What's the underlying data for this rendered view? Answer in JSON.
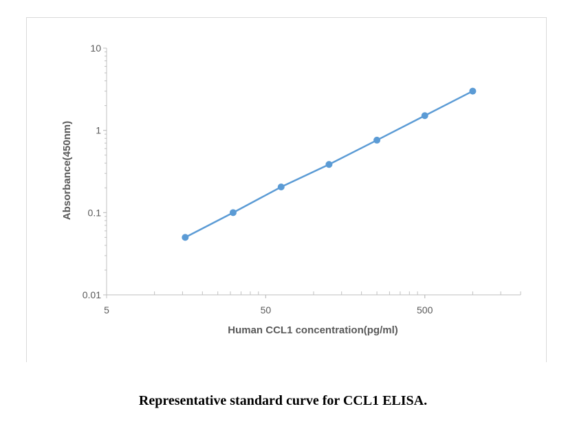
{
  "chart_data": {
    "type": "line",
    "xlabel": "Human CCL1 concentration(pg/ml)",
    "ylabel": "Absorbance(450nm)",
    "x_scale": "log",
    "y_scale": "log",
    "xlim": [
      5,
      2000
    ],
    "ylim": [
      0.01,
      10
    ],
    "x_ticks": [
      5,
      50,
      500
    ],
    "x_tick_labels": [
      "5",
      "50",
      "500"
    ],
    "y_ticks": [
      0.01,
      0.1,
      1,
      10
    ],
    "y_tick_labels": [
      "0.01",
      "0.1",
      "1",
      "10"
    ],
    "grid": false,
    "series": [
      {
        "x": [
          15.6,
          31.2,
          62.5,
          125,
          250,
          500,
          1000
        ],
        "y": [
          0.05,
          0.1,
          0.205,
          0.385,
          0.76,
          1.51,
          3.0
        ],
        "color": "#5b9bd5",
        "markers": true
      }
    ]
  },
  "caption": "Representative standard curve for CCL1 ELISA."
}
